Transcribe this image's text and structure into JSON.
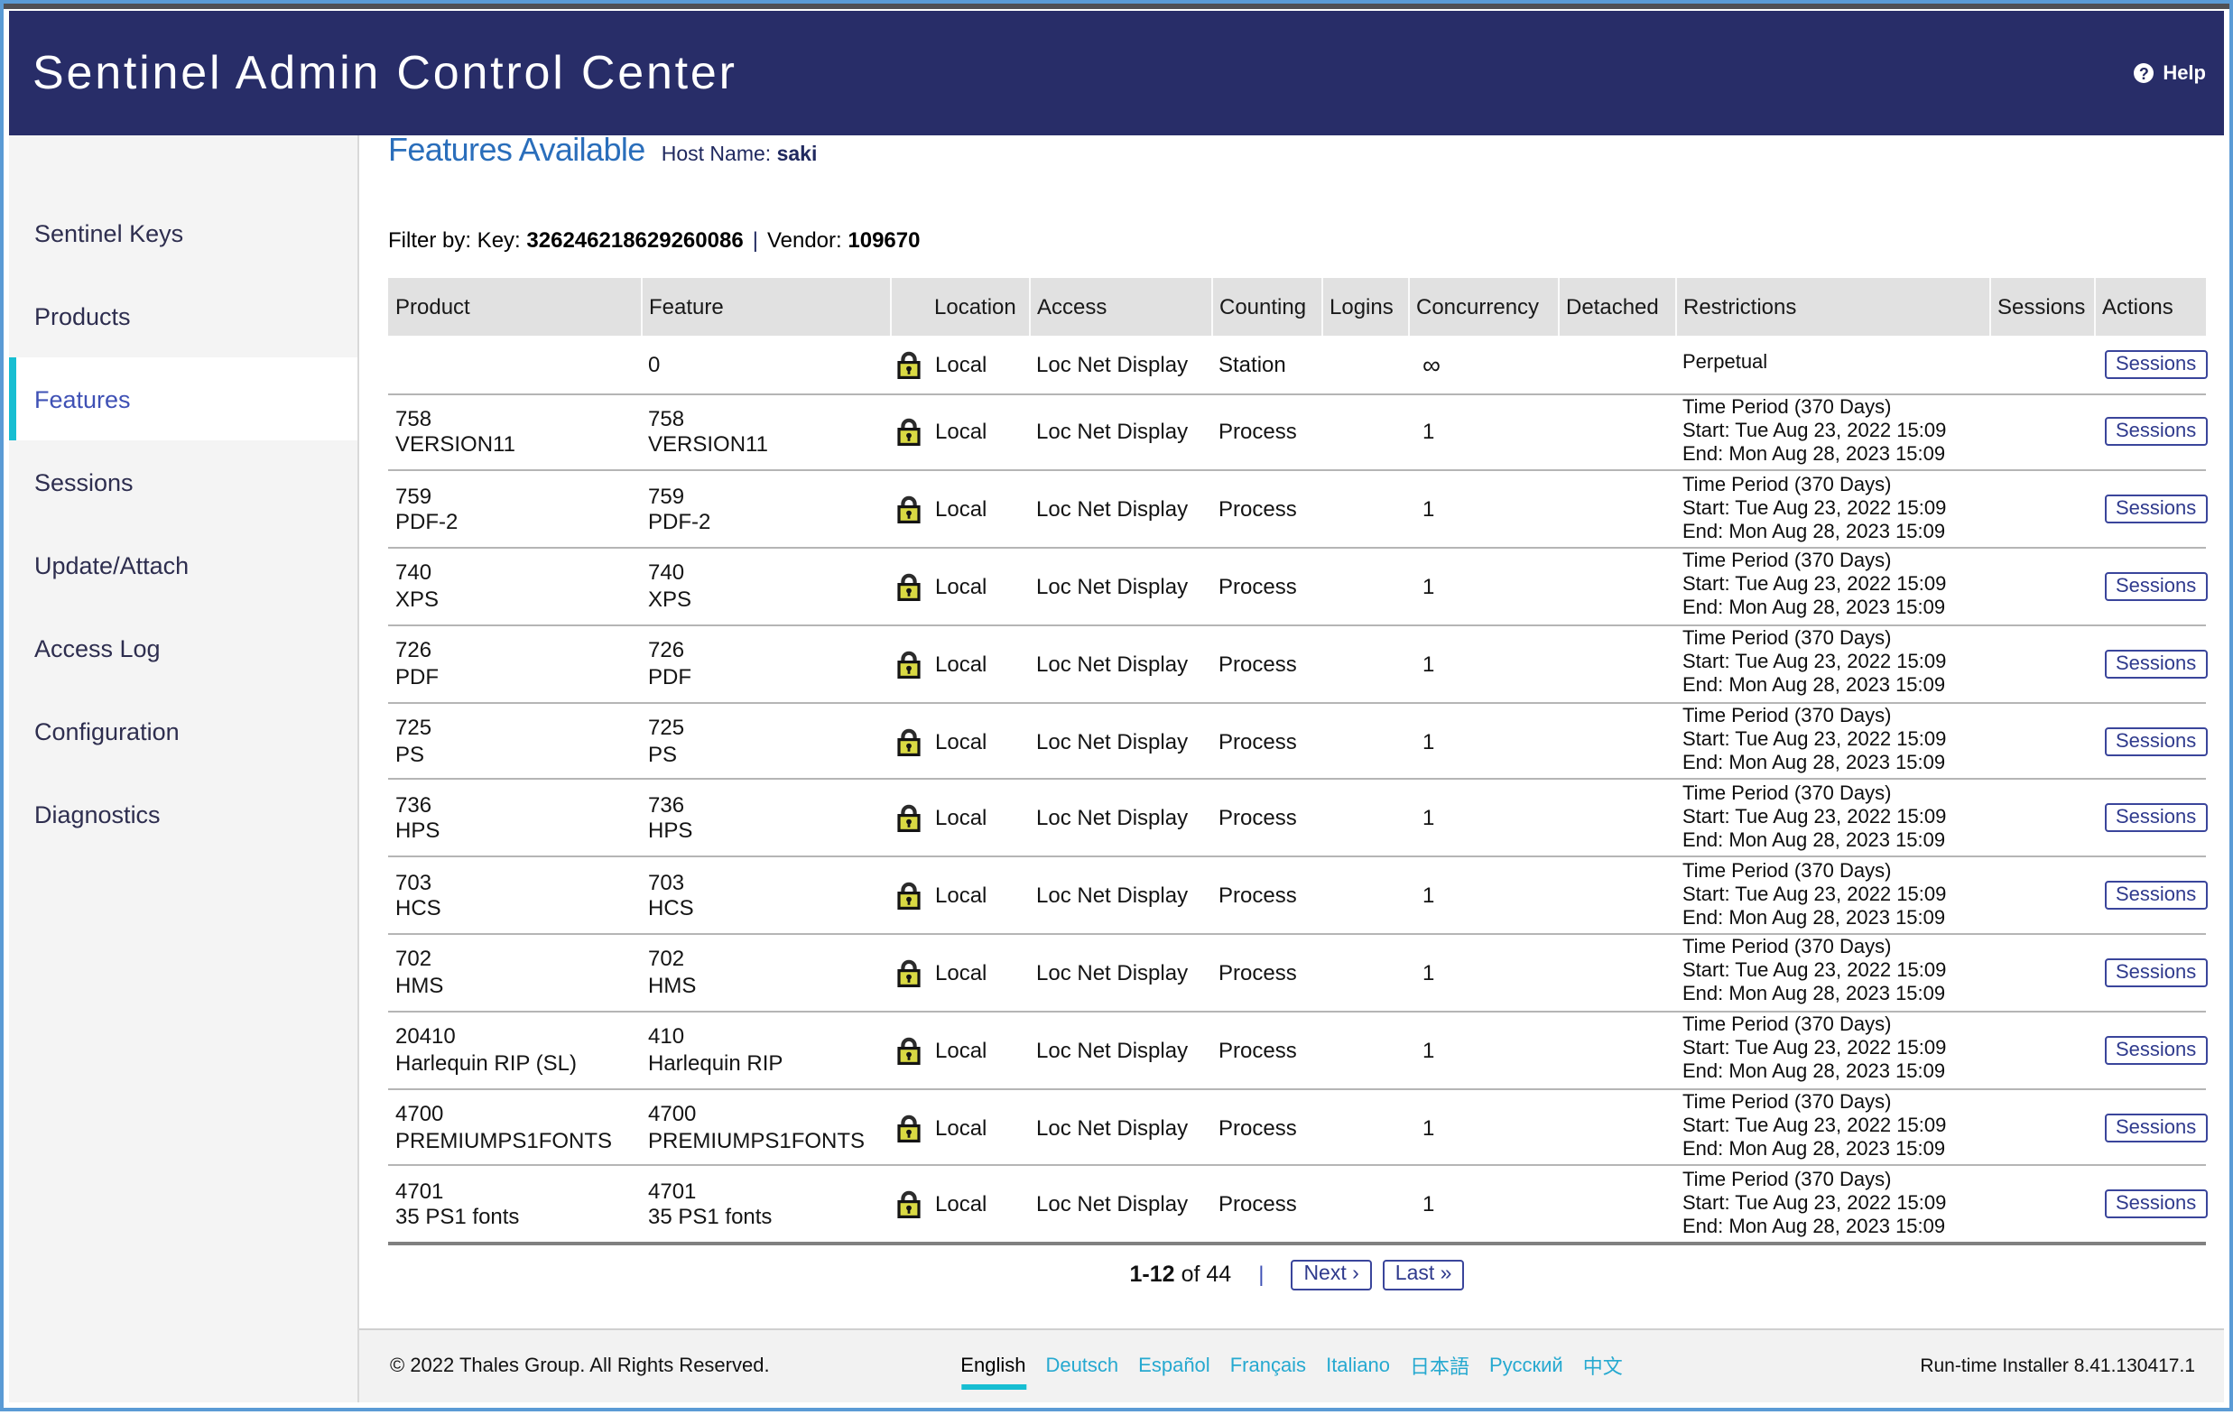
{
  "header": {
    "title_light": "Sentinel",
    "title_bold": "Admin Control Center",
    "help_icon": "?",
    "help_label": "Help"
  },
  "sidebar": {
    "items": [
      {
        "label": "Sentinel Keys",
        "active": false
      },
      {
        "label": "Products",
        "active": false
      },
      {
        "label": "Features",
        "active": true
      },
      {
        "label": "Sessions",
        "active": false
      },
      {
        "label": "Update/Attach",
        "active": false
      },
      {
        "label": "Access Log",
        "active": false
      },
      {
        "label": "Configuration",
        "active": false
      },
      {
        "label": "Diagnostics",
        "active": false
      }
    ]
  },
  "page": {
    "title": "Features Available",
    "host_label": "Host Name:",
    "host_value": "saki",
    "filter": {
      "prefix": "Filter by: Key:",
      "key": "326246218629260086",
      "sep": "|",
      "vendor_label": "Vendor:",
      "vendor": "109670"
    }
  },
  "table": {
    "columns": [
      "Product",
      "Feature",
      "Location",
      "Access",
      "Counting",
      "Logins",
      "Concurrency",
      "Detached",
      "Restrictions",
      "Sessions",
      "Actions"
    ],
    "lock_icon": "lock-icon",
    "action_label": "Sessions",
    "rows": [
      {
        "product": [],
        "feature": [
          "0"
        ],
        "location": "Local",
        "access": "Loc Net Display",
        "counting": "Station",
        "logins": "",
        "concurrency": "∞",
        "detached": "",
        "restrictions": [
          "Perpetual"
        ]
      },
      {
        "product": [
          "758",
          "VERSION11"
        ],
        "feature": [
          "758",
          "VERSION11"
        ],
        "location": "Local",
        "access": "Loc Net Display",
        "counting": "Process",
        "logins": "",
        "concurrency": "1",
        "detached": "",
        "restrictions": [
          "Time Period (370 Days)",
          "Start: Tue Aug 23, 2022 15:09",
          "End: Mon Aug 28, 2023 15:09"
        ]
      },
      {
        "product": [
          "759",
          "PDF-2"
        ],
        "feature": [
          "759",
          "PDF-2"
        ],
        "location": "Local",
        "access": "Loc Net Display",
        "counting": "Process",
        "logins": "",
        "concurrency": "1",
        "detached": "",
        "restrictions": [
          "Time Period (370 Days)",
          "Start: Tue Aug 23, 2022 15:09",
          "End: Mon Aug 28, 2023 15:09"
        ]
      },
      {
        "product": [
          "740",
          "XPS"
        ],
        "feature": [
          "740",
          "XPS"
        ],
        "location": "Local",
        "access": "Loc Net Display",
        "counting": "Process",
        "logins": "",
        "concurrency": "1",
        "detached": "",
        "restrictions": [
          "Time Period (370 Days)",
          "Start: Tue Aug 23, 2022 15:09",
          "End: Mon Aug 28, 2023 15:09"
        ]
      },
      {
        "product": [
          "726",
          "PDF"
        ],
        "feature": [
          "726",
          "PDF"
        ],
        "location": "Local",
        "access": "Loc Net Display",
        "counting": "Process",
        "logins": "",
        "concurrency": "1",
        "detached": "",
        "restrictions": [
          "Time Period (370 Days)",
          "Start: Tue Aug 23, 2022 15:09",
          "End: Mon Aug 28, 2023 15:09"
        ]
      },
      {
        "product": [
          "725",
          "PS"
        ],
        "feature": [
          "725",
          "PS"
        ],
        "location": "Local",
        "access": "Loc Net Display",
        "counting": "Process",
        "logins": "",
        "concurrency": "1",
        "detached": "",
        "restrictions": [
          "Time Period (370 Days)",
          "Start: Tue Aug 23, 2022 15:09",
          "End: Mon Aug 28, 2023 15:09"
        ]
      },
      {
        "product": [
          "736",
          "HPS"
        ],
        "feature": [
          "736",
          "HPS"
        ],
        "location": "Local",
        "access": "Loc Net Display",
        "counting": "Process",
        "logins": "",
        "concurrency": "1",
        "detached": "",
        "restrictions": [
          "Time Period (370 Days)",
          "Start: Tue Aug 23, 2022 15:09",
          "End: Mon Aug 28, 2023 15:09"
        ]
      },
      {
        "product": [
          "703",
          "HCS"
        ],
        "feature": [
          "703",
          "HCS"
        ],
        "location": "Local",
        "access": "Loc Net Display",
        "counting": "Process",
        "logins": "",
        "concurrency": "1",
        "detached": "",
        "restrictions": [
          "Time Period (370 Days)",
          "Start: Tue Aug 23, 2022 15:09",
          "End: Mon Aug 28, 2023 15:09"
        ]
      },
      {
        "product": [
          "702",
          "HMS"
        ],
        "feature": [
          "702",
          "HMS"
        ],
        "location": "Local",
        "access": "Loc Net Display",
        "counting": "Process",
        "logins": "",
        "concurrency": "1",
        "detached": "",
        "restrictions": [
          "Time Period (370 Days)",
          "Start: Tue Aug 23, 2022 15:09",
          "End: Mon Aug 28, 2023 15:09"
        ]
      },
      {
        "product": [
          "20410",
          "Harlequin RIP (SL)"
        ],
        "feature": [
          "410",
          "Harlequin RIP"
        ],
        "location": "Local",
        "access": "Loc Net Display",
        "counting": "Process",
        "logins": "",
        "concurrency": "1",
        "detached": "",
        "restrictions": [
          "Time Period (370 Days)",
          "Start: Tue Aug 23, 2022 15:09",
          "End: Mon Aug 28, 2023 15:09"
        ]
      },
      {
        "product": [
          "4700",
          "PREMIUMPS1FONTS"
        ],
        "feature": [
          "4700",
          "PREMIUMPS1FONTS"
        ],
        "location": "Local",
        "access": "Loc Net Display",
        "counting": "Process",
        "logins": "",
        "concurrency": "1",
        "detached": "",
        "restrictions": [
          "Time Period (370 Days)",
          "Start: Tue Aug 23, 2022 15:09",
          "End: Mon Aug 28, 2023 15:09"
        ]
      },
      {
        "product": [
          "4701",
          "35 PS1 fonts"
        ],
        "feature": [
          "4701",
          "35 PS1 fonts"
        ],
        "location": "Local",
        "access": "Loc Net Display",
        "counting": "Process",
        "logins": "",
        "concurrency": "1",
        "detached": "",
        "restrictions": [
          "Time Period (370 Days)",
          "Start: Tue Aug 23, 2022 15:09",
          "End: Mon Aug 28, 2023 15:09"
        ]
      }
    ]
  },
  "pagination": {
    "range": "1-12",
    "of_total": "of 44",
    "sep": "|",
    "next": "Next ›",
    "last": "Last »"
  },
  "footer": {
    "copyright": "© 2022 Thales Group. All Rights Reserved.",
    "languages": [
      {
        "label": "English",
        "current": true
      },
      {
        "label": "Deutsch",
        "current": false
      },
      {
        "label": "Español",
        "current": false
      },
      {
        "label": "Français",
        "current": false
      },
      {
        "label": "Italiano",
        "current": false
      },
      {
        "label": "日本語",
        "current": false
      },
      {
        "label": "Русский",
        "current": false
      },
      {
        "label": "中文",
        "current": false
      }
    ],
    "runtime": "Run-time Installer 8.41.130417.1"
  },
  "colors": {
    "header_navy": "#282d68",
    "accent_teal": "#17bed2",
    "title_blue": "#2a6ebb",
    "link_cyan": "#26a9d0",
    "button_navy": "#3a459b",
    "page_border": "#5b9bd5"
  }
}
